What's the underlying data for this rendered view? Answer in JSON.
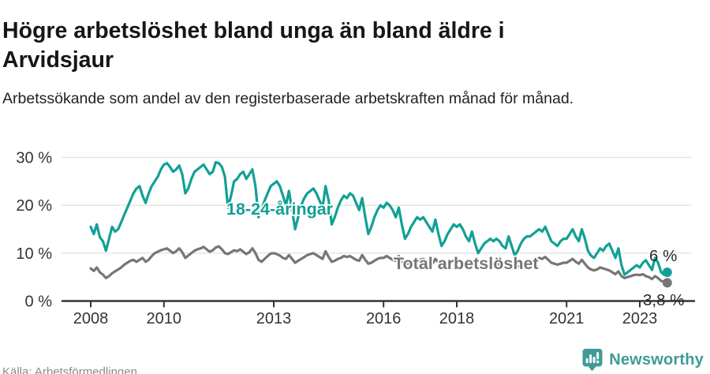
{
  "header": {
    "title": "Högre arbetslöshet bland unga än bland äldre i Arvidsjaur",
    "subtitle": "Arbetssökande som andel av den registerbaserade arbetskraften månad för månad."
  },
  "footer": {
    "source": "Källa: Arbetsförmedlingen",
    "brand": "Newsworthy"
  },
  "colors": {
    "youth_line": "#12a095",
    "total_line": "#767676",
    "grid": "#e3e3e3",
    "axis": "#333333",
    "tick_text": "#333333",
    "end_label_text": "#2b2b2b",
    "brand_teal": "#3e9c95",
    "title_text": "#161616",
    "subtitle_text": "#222222",
    "source_text": "#8b8b8b"
  },
  "chart_data": {
    "type": "line",
    "x_start_year": 2008,
    "x_step_months": 1,
    "x_ticks": [
      2008,
      2010,
      2013,
      2016,
      2018,
      2021,
      2023
    ],
    "y_ticks": [
      0,
      10,
      20,
      30
    ],
    "y_tick_suffix": " %",
    "ylim": [
      0,
      32
    ],
    "grid": true,
    "legend_position": "inline-labels",
    "series": [
      {
        "name": "Total arbetslöshet",
        "color": "#767676",
        "end_label": "3,8 %",
        "end_value": 3.8,
        "values": [
          6.8,
          6.3,
          7.0,
          6.0,
          5.5,
          4.8,
          5.2,
          5.8,
          6.2,
          6.6,
          7.0,
          7.6,
          8.0,
          8.4,
          8.6,
          8.2,
          8.6,
          9.0,
          8.2,
          8.6,
          9.4,
          10.0,
          10.3,
          10.6,
          10.8,
          11.0,
          10.5,
          10.0,
          10.4,
          11.0,
          10.2,
          9.0,
          9.5,
          10.0,
          10.5,
          10.8,
          11.0,
          11.3,
          10.8,
          10.3,
          10.6,
          11.2,
          11.4,
          10.8,
          10.0,
          9.8,
          10.2,
          10.6,
          10.4,
          10.8,
          10.3,
          9.8,
          10.2,
          11.0,
          10.0,
          8.6,
          8.2,
          8.8,
          9.4,
          9.9,
          10.0,
          9.8,
          9.5,
          9.0,
          8.8,
          9.6,
          8.8,
          8.0,
          8.4,
          8.8,
          9.2,
          9.6,
          9.8,
          10.0,
          9.6,
          9.2,
          8.8,
          10.4,
          9.2,
          8.2,
          8.4,
          8.8,
          9.0,
          9.4,
          9.2,
          9.4,
          9.0,
          8.6,
          8.4,
          9.6,
          8.6,
          7.8,
          8.0,
          8.4,
          8.8,
          9.0,
          9.0,
          9.4,
          9.0,
          8.6,
          8.4,
          9.4,
          8.4,
          7.6,
          7.8,
          8.0,
          8.4,
          8.6,
          8.6,
          8.8,
          8.4,
          8.0,
          7.8,
          8.8,
          8.0,
          7.4,
          7.6,
          7.8,
          8.0,
          8.4,
          8.4,
          8.6,
          8.0,
          7.6,
          7.4,
          8.4,
          7.6,
          7.0,
          7.2,
          7.4,
          7.6,
          7.8,
          7.8,
          8.0,
          7.6,
          7.4,
          7.2,
          8.2,
          7.4,
          7.0,
          7.2,
          7.4,
          7.6,
          7.8,
          8.0,
          8.2,
          8.6,
          9.0,
          8.8,
          9.2,
          8.6,
          8.0,
          7.8,
          7.6,
          7.8,
          8.0,
          8.0,
          8.4,
          8.8,
          8.2,
          7.8,
          8.6,
          7.8,
          7.0,
          6.6,
          6.4,
          6.6,
          7.0,
          6.8,
          6.6,
          6.4,
          6.0,
          5.6,
          6.2,
          5.2,
          4.8,
          5.0,
          5.2,
          5.4,
          5.5,
          5.4,
          5.6,
          5.2,
          5.0,
          4.6,
          5.2,
          4.8,
          4.2,
          4.0,
          3.8
        ]
      },
      {
        "name": "18-24-åringar",
        "color": "#12a095",
        "end_label": "6 %",
        "end_value": 6.0,
        "values": [
          15.5,
          14.0,
          16.0,
          13.3,
          12.5,
          10.5,
          13.0,
          15.5,
          14.5,
          15.0,
          16.5,
          18.0,
          19.5,
          21.0,
          22.5,
          23.5,
          24.0,
          22.0,
          20.5,
          22.5,
          24.0,
          25.0,
          26.0,
          27.5,
          28.5,
          28.8,
          28.0,
          27.0,
          27.5,
          28.3,
          26.5,
          22.5,
          23.5,
          25.5,
          27.0,
          27.5,
          28.0,
          28.5,
          27.5,
          26.5,
          27.0,
          29.0,
          28.8,
          28.0,
          26.0,
          19.5,
          22.0,
          25.0,
          25.5,
          26.5,
          27.0,
          25.5,
          26.5,
          27.5,
          24.0,
          17.5,
          19.0,
          21.0,
          22.5,
          24.0,
          24.5,
          25.0,
          24.0,
          22.0,
          20.0,
          23.0,
          19.0,
          15.0,
          17.5,
          20.0,
          21.5,
          22.5,
          23.0,
          23.5,
          22.5,
          21.0,
          19.5,
          24.0,
          21.0,
          16.0,
          17.5,
          19.5,
          21.0,
          22.0,
          21.5,
          22.5,
          22.0,
          20.5,
          19.0,
          21.5,
          17.5,
          14.0,
          15.5,
          17.5,
          19.0,
          20.0,
          19.5,
          20.5,
          20.0,
          19.0,
          17.5,
          19.5,
          16.0,
          13.0,
          14.0,
          15.5,
          16.5,
          17.5,
          17.0,
          17.5,
          16.5,
          15.5,
          14.5,
          17.0,
          14.0,
          11.5,
          12.5,
          14.0,
          15.0,
          16.0,
          15.5,
          16.0,
          15.0,
          13.5,
          12.5,
          14.5,
          12.0,
          10.0,
          11.0,
          12.0,
          12.5,
          13.0,
          12.5,
          13.0,
          12.5,
          11.5,
          11.0,
          13.5,
          11.5,
          9.5,
          10.5,
          12.0,
          13.0,
          13.5,
          13.5,
          14.0,
          14.5,
          15.0,
          14.5,
          15.5,
          14.0,
          12.5,
          12.0,
          11.5,
          12.5,
          13.0,
          13.0,
          14.0,
          15.0,
          13.5,
          12.5,
          15.0,
          13.0,
          10.5,
          9.5,
          9.0,
          10.0,
          11.0,
          10.5,
          11.5,
          12.0,
          10.5,
          9.0,
          11.0,
          7.5,
          5.5,
          6.0,
          6.5,
          7.0,
          7.5,
          7.0,
          8.0,
          8.5,
          7.5,
          6.5,
          9.0,
          8.0,
          6.0,
          5.5,
          6.0
        ]
      }
    ]
  }
}
